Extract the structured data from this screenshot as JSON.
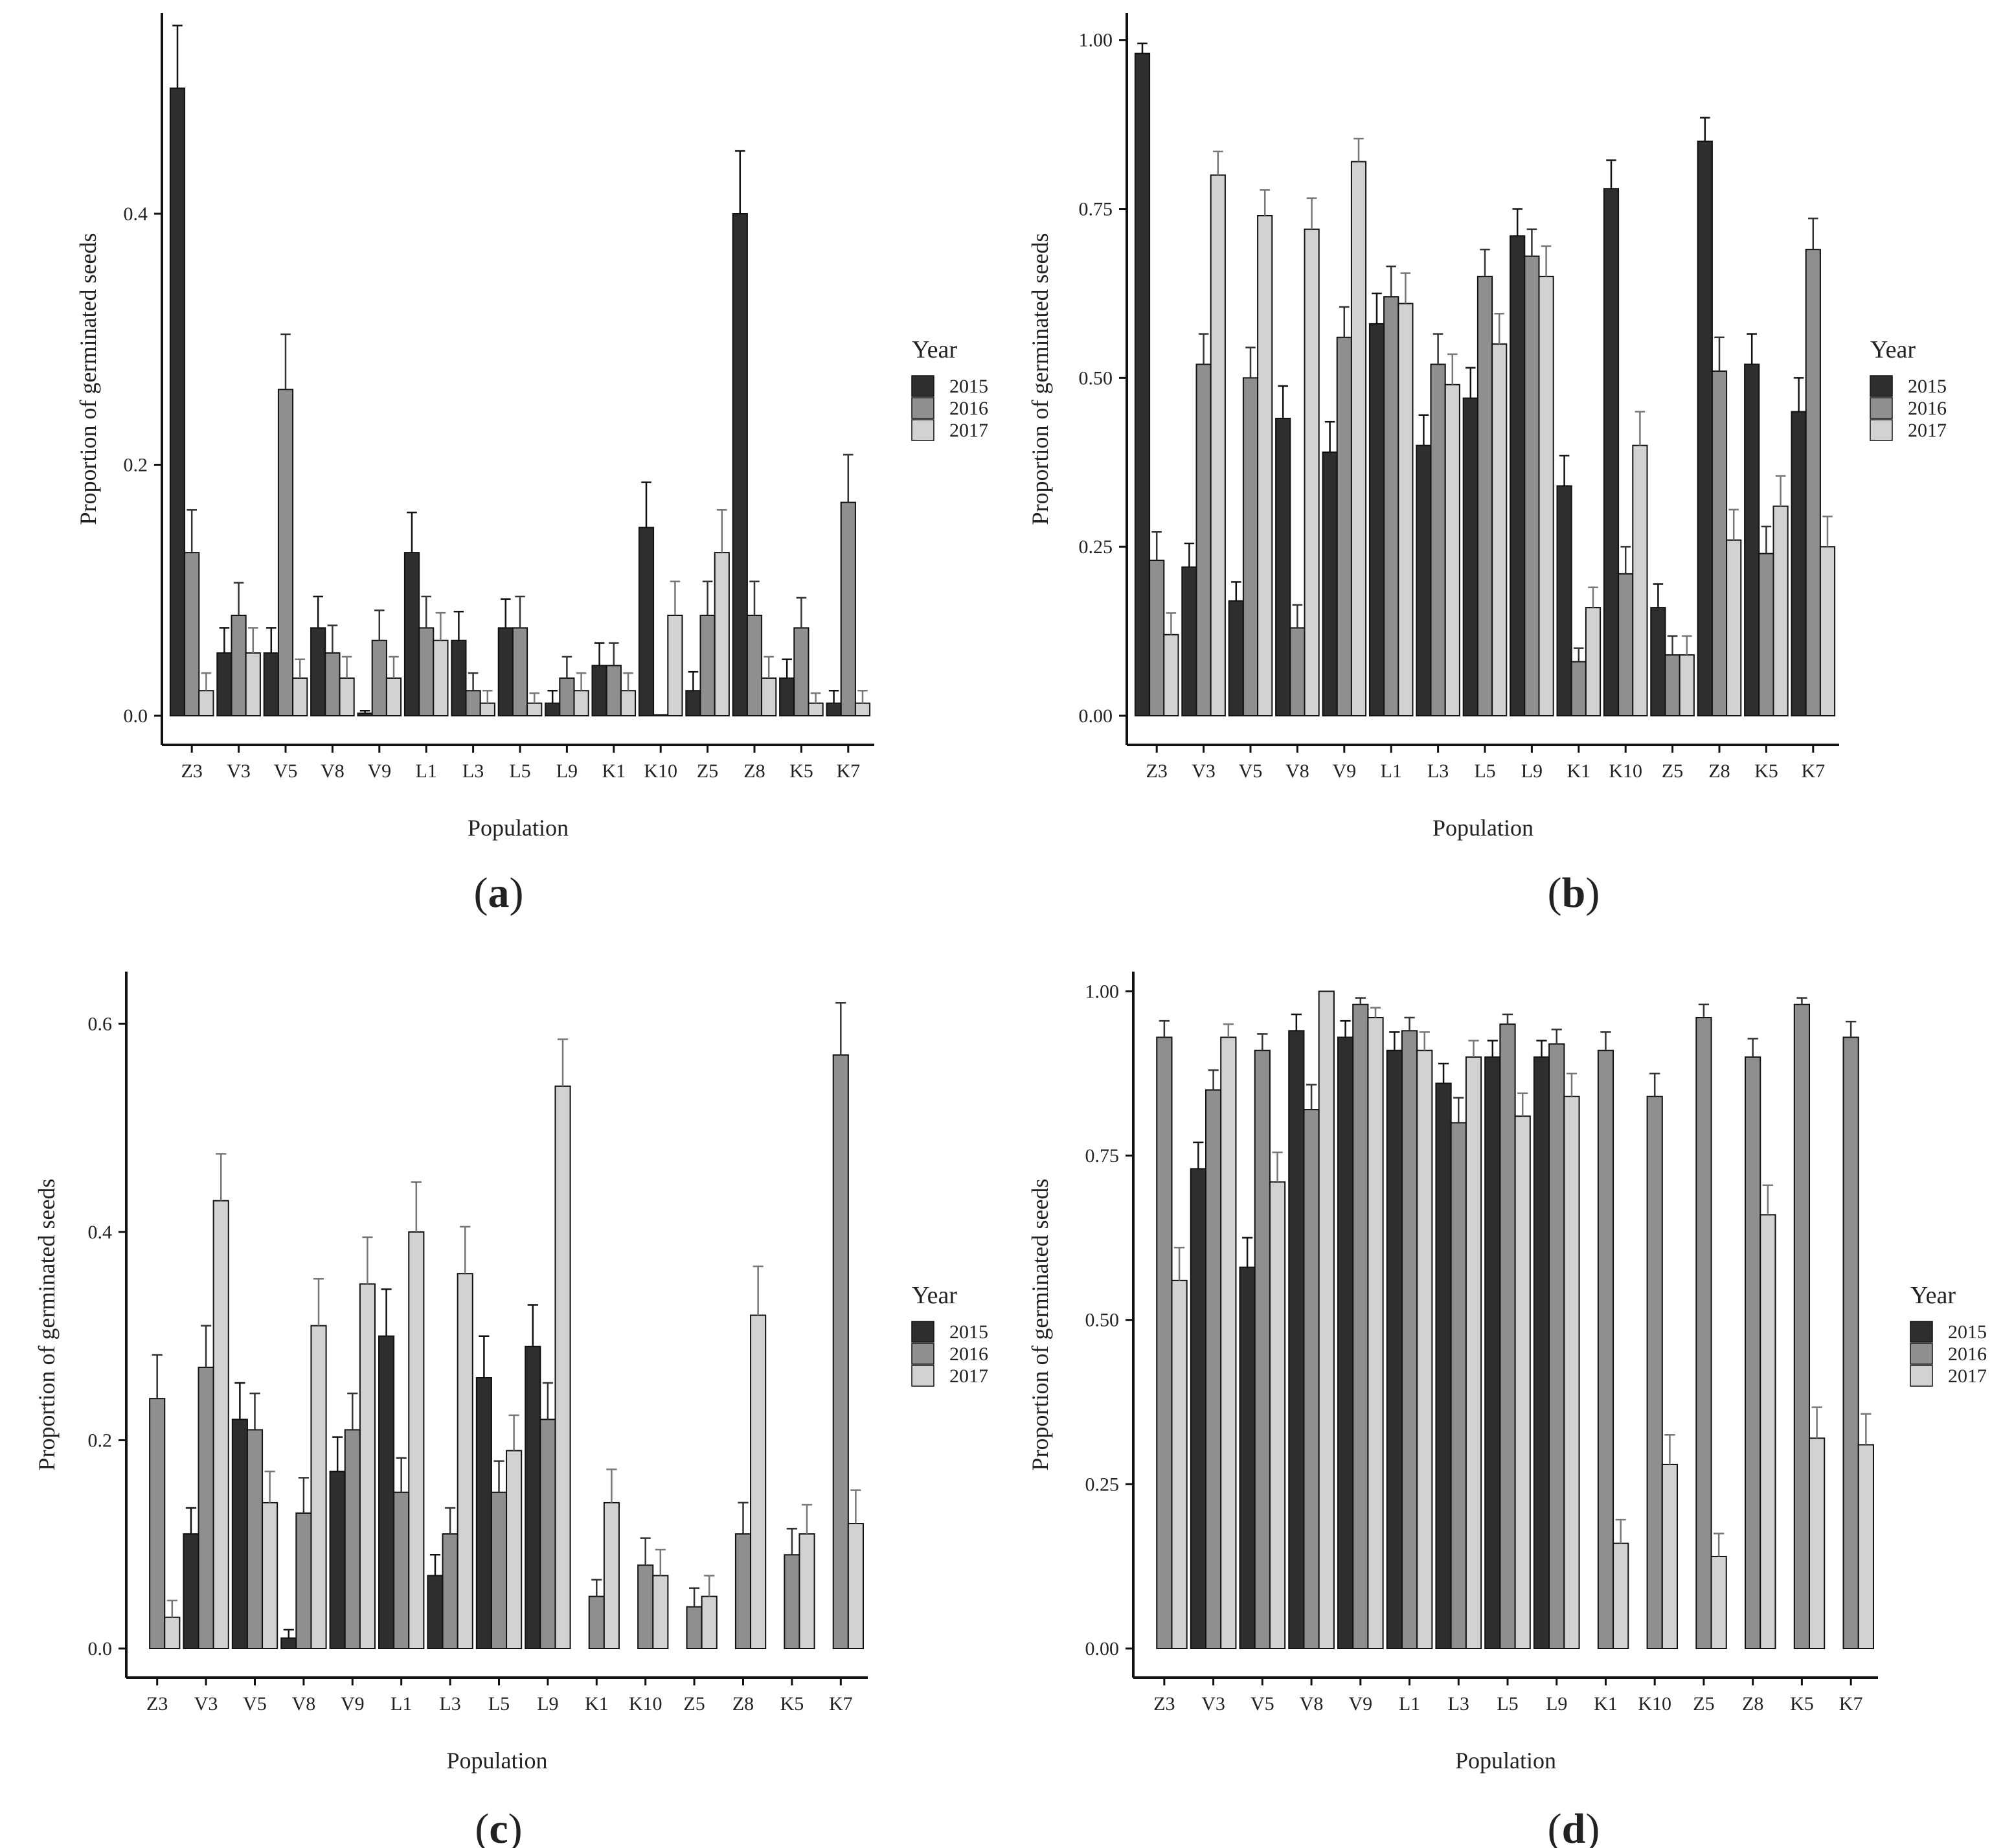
{
  "figure": {
    "series_colors": {
      "2015": "#2e2e2e",
      "2016": "#8f8f8f",
      "2017": "#d2d2d2"
    }
  },
  "chart_data": [
    {
      "panel": "(a)",
      "type": "bar",
      "xlabel": "Population",
      "ylabel": "Proportion of germinated seeds",
      "ylim": [
        0,
        0.56
      ],
      "yticks": [
        "0.0",
        "0.2",
        "0.4"
      ],
      "grid": false,
      "legend": {
        "title": "Year",
        "position": "right"
      },
      "categories": [
        "Z3",
        "V3",
        "V5",
        "V8",
        "V9",
        "L1",
        "L3",
        "L5",
        "L9",
        "K1",
        "K10",
        "Z5",
        "Z8",
        "K5",
        "K7"
      ],
      "series": [
        {
          "name": "2015",
          "values": [
            0.5,
            0.05,
            0.05,
            0.07,
            0.002,
            0.13,
            0.06,
            0.07,
            0.01,
            0.04,
            0.15,
            0.02,
            0.4,
            0.03,
            0.01
          ],
          "errors": [
            0.05,
            0.02,
            0.02,
            0.025,
            0.002,
            0.032,
            0.023,
            0.023,
            0.01,
            0.018,
            0.036,
            0.015,
            0.05,
            0.015,
            0.01
          ]
        },
        {
          "name": "2016",
          "values": [
            0.13,
            0.08,
            0.26,
            0.05,
            0.06,
            0.07,
            0.02,
            0.07,
            0.03,
            0.04,
            0.0,
            0.08,
            0.08,
            0.07,
            0.17
          ],
          "errors": [
            0.034,
            0.026,
            0.044,
            0.022,
            0.024,
            0.025,
            0.014,
            0.025,
            0.017,
            0.018,
            0.0,
            0.027,
            0.027,
            0.024,
            0.038
          ]
        },
        {
          "name": "2017",
          "values": [
            0.02,
            0.05,
            0.03,
            0.03,
            0.03,
            0.06,
            0.01,
            0.01,
            0.02,
            0.02,
            0.08,
            0.13,
            0.03,
            0.01,
            0.01
          ],
          "errors": [
            0.014,
            0.02,
            0.015,
            0.017,
            0.017,
            0.022,
            0.01,
            0.008,
            0.014,
            0.014,
            0.027,
            0.034,
            0.017,
            0.008,
            0.01
          ]
        }
      ]
    },
    {
      "panel": "(b)",
      "type": "bar",
      "xlabel": "Population",
      "ylabel": "Proportion of germinated seeds",
      "ylim": [
        0,
        1.04
      ],
      "yticks": [
        "0.00",
        "0.25",
        "0.50",
        "0.75",
        "1.00"
      ],
      "grid": false,
      "legend": {
        "title": "Year",
        "position": "right"
      },
      "categories": [
        "Z3",
        "V3",
        "V5",
        "V8",
        "V9",
        "L1",
        "L3",
        "L5",
        "L9",
        "K1",
        "K10",
        "Z5",
        "Z8",
        "K5",
        "K7"
      ],
      "series": [
        {
          "name": "2015",
          "values": [
            0.98,
            0.22,
            0.17,
            0.44,
            0.39,
            0.58,
            0.4,
            0.47,
            0.71,
            0.34,
            0.78,
            0.16,
            0.85,
            0.52,
            0.45
          ],
          "errors": [
            0.015,
            0.035,
            0.028,
            0.048,
            0.045,
            0.045,
            0.045,
            0.045,
            0.04,
            0.045,
            0.042,
            0.035,
            0.035,
            0.045,
            0.05
          ]
        },
        {
          "name": "2016",
          "values": [
            0.23,
            0.52,
            0.5,
            0.13,
            0.56,
            0.62,
            0.52,
            0.65,
            0.68,
            0.08,
            0.21,
            0.09,
            0.51,
            0.24,
            0.69
          ],
          "errors": [
            0.042,
            0.045,
            0.045,
            0.034,
            0.045,
            0.045,
            0.045,
            0.04,
            0.04,
            0.02,
            0.04,
            0.028,
            0.05,
            0.04,
            0.046
          ]
        },
        {
          "name": "2017",
          "values": [
            0.12,
            0.8,
            0.74,
            0.72,
            0.82,
            0.61,
            0.49,
            0.55,
            0.65,
            0.16,
            0.4,
            0.09,
            0.26,
            0.31,
            0.25
          ],
          "errors": [
            0.032,
            0.035,
            0.038,
            0.046,
            0.034,
            0.045,
            0.045,
            0.045,
            0.045,
            0.03,
            0.05,
            0.028,
            0.045,
            0.045,
            0.045
          ]
        }
      ]
    },
    {
      "panel": "(c)",
      "type": "bar",
      "xlabel": "Population",
      "ylabel": "Proportion of germinated seeds",
      "ylim": [
        0,
        0.65
      ],
      "yticks": [
        "0.0",
        "0.2",
        "0.4",
        "0.6"
      ],
      "grid": false,
      "legend": {
        "title": "Year",
        "position": "right"
      },
      "categories": [
        "Z3",
        "V3",
        "V5",
        "V8",
        "V9",
        "L1",
        "L3",
        "L5",
        "L9",
        "K1",
        "K10",
        "Z5",
        "Z8",
        "K5",
        "K7"
      ],
      "series": [
        {
          "name": "2015",
          "values": [
            null,
            0.11,
            0.22,
            0.01,
            0.17,
            0.3,
            0.07,
            0.26,
            0.29,
            null,
            null,
            null,
            null,
            null,
            null
          ],
          "errors": [
            0,
            0.025,
            0.035,
            0.008,
            0.033,
            0.045,
            0.02,
            0.04,
            0.04,
            0,
            0,
            0,
            0,
            0,
            0
          ]
        },
        {
          "name": "2016",
          "values": [
            0.24,
            0.27,
            0.21,
            0.13,
            0.21,
            0.15,
            0.11,
            0.15,
            0.22,
            0.05,
            0.08,
            0.04,
            0.11,
            0.09,
            0.57
          ],
          "errors": [
            0.042,
            0.04,
            0.035,
            0.034,
            0.035,
            0.033,
            0.025,
            0.03,
            0.035,
            0.016,
            0.026,
            0.018,
            0.03,
            0.025,
            0.05
          ]
        },
        {
          "name": "2017",
          "values": [
            0.03,
            0.43,
            0.14,
            0.31,
            0.35,
            0.4,
            0.36,
            0.19,
            0.54,
            0.14,
            0.07,
            0.05,
            0.32,
            0.11,
            0.12
          ],
          "errors": [
            0.016,
            0.045,
            0.03,
            0.045,
            0.045,
            0.048,
            0.045,
            0.034,
            0.045,
            0.032,
            0.025,
            0.02,
            0.047,
            0.028,
            0.032
          ]
        }
      ]
    },
    {
      "panel": "(d)",
      "type": "bar",
      "xlabel": "Population",
      "ylabel": "Proportion of germinated seeds",
      "ylim": [
        0,
        1.03
      ],
      "yticks": [
        "0.00",
        "0.25",
        "0.50",
        "0.75",
        "1.00"
      ],
      "grid": false,
      "legend": {
        "title": "Year",
        "position": "right"
      },
      "categories": [
        "Z3",
        "V3",
        "V5",
        "V8",
        "V9",
        "L1",
        "L3",
        "L5",
        "L9",
        "K1",
        "K10",
        "Z5",
        "Z8",
        "K5",
        "K7"
      ],
      "series": [
        {
          "name": "2015",
          "values": [
            null,
            0.73,
            0.58,
            0.94,
            0.93,
            0.91,
            0.86,
            0.9,
            0.9,
            null,
            null,
            null,
            null,
            null,
            null
          ],
          "errors": [
            0,
            0.04,
            0.045,
            0.025,
            0.025,
            0.028,
            0.03,
            0.025,
            0.025,
            0,
            0,
            0,
            0,
            0,
            0
          ]
        },
        {
          "name": "2016",
          "values": [
            0.93,
            0.85,
            0.91,
            0.82,
            0.98,
            0.94,
            0.8,
            0.95,
            0.92,
            0.91,
            0.84,
            0.96,
            0.9,
            0.98,
            0.93
          ],
          "errors": [
            0.025,
            0.03,
            0.025,
            0.038,
            0.01,
            0.02,
            0.038,
            0.015,
            0.022,
            0.028,
            0.035,
            0.02,
            0.028,
            0.01,
            0.024
          ]
        },
        {
          "name": "2017",
          "values": [
            0.56,
            0.93,
            0.71,
            1.0,
            0.96,
            0.91,
            0.9,
            0.81,
            0.84,
            0.16,
            0.28,
            0.14,
            0.66,
            0.32,
            0.31
          ],
          "errors": [
            0.05,
            0.02,
            0.045,
            0.0,
            0.015,
            0.028,
            0.025,
            0.035,
            0.035,
            0.036,
            0.045,
            0.035,
            0.045,
            0.047,
            0.047
          ]
        }
      ]
    }
  ]
}
